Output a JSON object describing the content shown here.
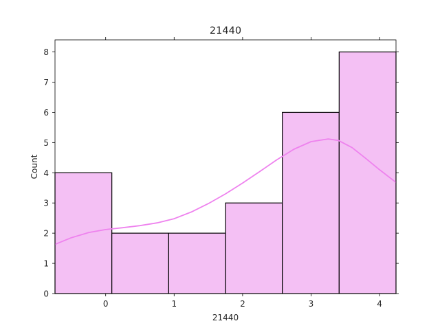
{
  "chart_data": {
    "type": "histogram",
    "title": "21440",
    "xlabel": "21440",
    "ylabel": "Count",
    "xlim": [
      -0.74,
      4.24
    ],
    "ylim": [
      0,
      8.4
    ],
    "xticks": [
      0,
      1,
      2,
      3,
      4
    ],
    "yticks": [
      0,
      1,
      2,
      3,
      4,
      5,
      6,
      7,
      8
    ],
    "bins": [
      {
        "x0": -0.74,
        "x1": 0.09,
        "count": 4
      },
      {
        "x0": 0.09,
        "x1": 0.92,
        "count": 2
      },
      {
        "x0": 0.92,
        "x1": 1.75,
        "count": 2
      },
      {
        "x0": 1.75,
        "x1": 2.58,
        "count": 3
      },
      {
        "x0": 2.58,
        "x1": 3.41,
        "count": 6
      },
      {
        "x0": 3.41,
        "x1": 4.24,
        "count": 8
      }
    ],
    "kde": {
      "x": [
        -0.74,
        -0.5,
        -0.25,
        0.0,
        0.25,
        0.5,
        0.75,
        1.0,
        1.25,
        1.5,
        1.75,
        2.0,
        2.25,
        2.5,
        2.75,
        3.0,
        3.25,
        3.4,
        3.6,
        3.8,
        4.0,
        4.24
      ],
      "y": [
        1.63,
        1.85,
        2.02,
        2.12,
        2.18,
        2.25,
        2.34,
        2.48,
        2.7,
        2.98,
        3.3,
        3.66,
        4.04,
        4.43,
        4.78,
        5.03,
        5.12,
        5.07,
        4.83,
        4.47,
        4.1,
        3.68
      ]
    },
    "colors": {
      "bar_fill": "#f4c0f4",
      "bar_edge": "#000000",
      "kde_line": "#ee82ee",
      "axis": "#000000"
    }
  }
}
